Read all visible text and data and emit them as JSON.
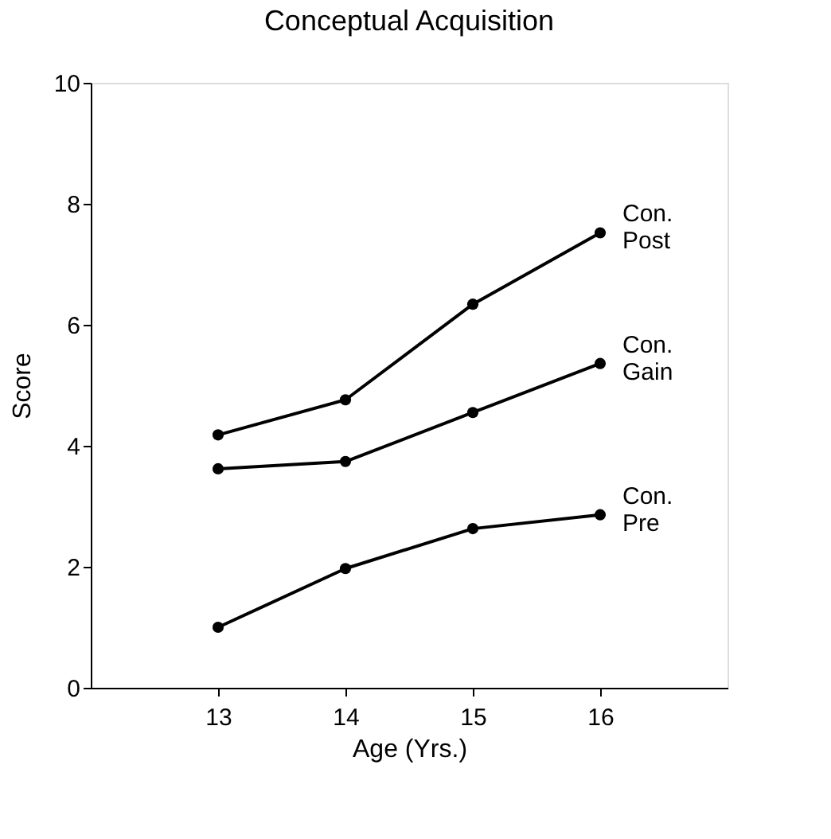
{
  "chart_data": {
    "type": "line",
    "title": "Conceptual Acquisition",
    "xlabel": "Age (Yrs.)",
    "ylabel": "Score",
    "x": [
      13,
      14,
      15,
      16
    ],
    "xlim": [
      12,
      17
    ],
    "xticks": [
      13,
      14,
      15,
      16
    ],
    "ylim": [
      0,
      10
    ],
    "yticks": [
      0,
      2,
      4,
      6,
      8,
      10
    ],
    "series": [
      {
        "name": "Con.\nPost",
        "color": "#000000",
        "values": [
          4.18,
          4.76,
          6.34,
          7.52
        ]
      },
      {
        "name": "Con.\nGain",
        "color": "#000000",
        "values": [
          3.62,
          3.74,
          4.55,
          5.36
        ]
      },
      {
        "name": "Con.\nPre",
        "color": "#000000",
        "values": [
          1.0,
          1.97,
          2.63,
          2.86
        ]
      }
    ],
    "marker": "circle",
    "line_style": "solid",
    "grid": false,
    "legend": false
  }
}
